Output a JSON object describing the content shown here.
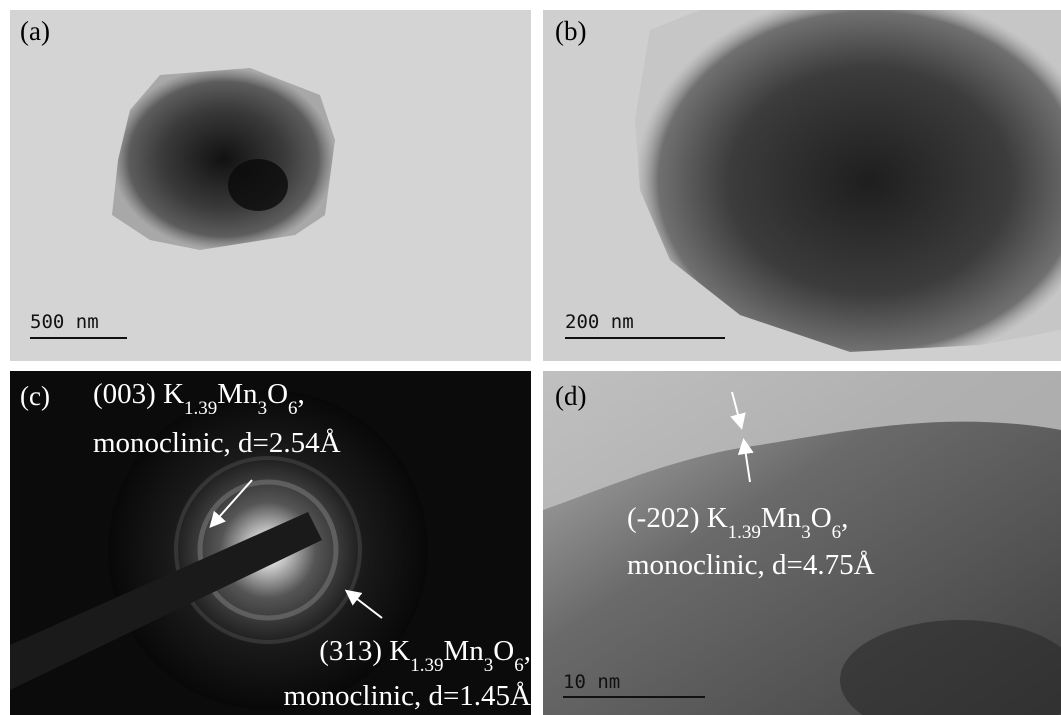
{
  "panels": [
    {
      "label": "(a)",
      "scale_bar": "500 nm"
    },
    {
      "label": "(b)",
      "scale_bar": "200 nm"
    },
    {
      "label": "(c)",
      "annotations": [
        {
          "lines": [
            [
              "(003) K",
              "1.39",
              "Mn",
              "3",
              "O",
              "6",
              ","
            ],
            [
              "monoclinic, d=2.54Å"
            ]
          ]
        },
        {
          "lines": [
            [
              "(313) K",
              "1.39",
              "Mn",
              "3",
              "O",
              "6",
              ","
            ],
            [
              "monoclinic, d=1.45Å"
            ]
          ]
        }
      ]
    },
    {
      "label": "(d)",
      "scale_bar": "10 nm",
      "annotations": [
        {
          "lines": [
            [
              "(-202) K",
              "1.39",
              "Mn",
              "3",
              "O",
              "6",
              ","
            ],
            [
              "monoclinic, d=4.75Å"
            ]
          ]
        }
      ]
    }
  ]
}
